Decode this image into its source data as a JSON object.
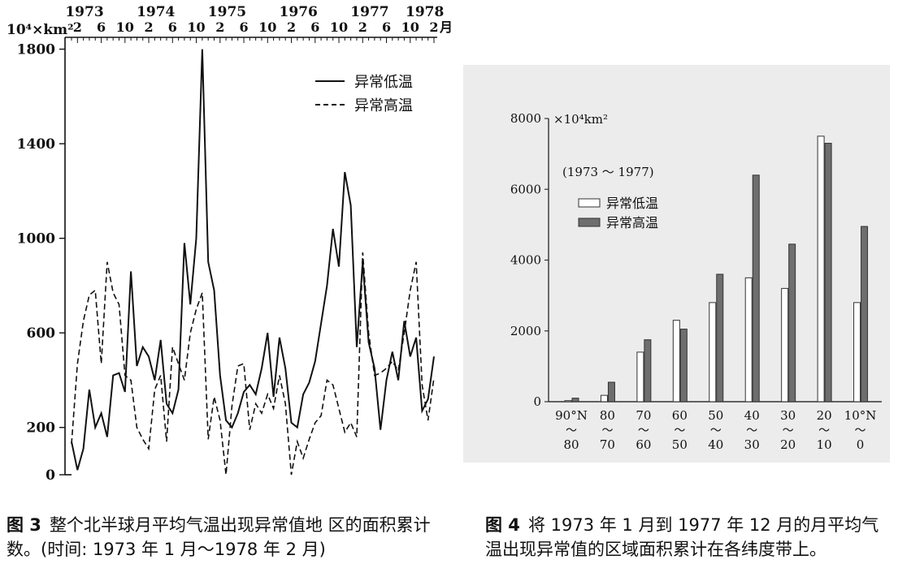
{
  "figure3": {
    "caption_number": "图 3",
    "caption_text": "整个北半球月平均气温出现异常值地 区的面积累计数。(时间: 1973 年 1 月～1978 年 2 月)",
    "chart_data": {
      "type": "line",
      "yunit_label": "10⁴×km²",
      "yticks": [
        "0",
        "200",
        "600",
        "1000",
        "1400",
        "1800"
      ],
      "ylim": [
        0,
        1850
      ],
      "year_labels": [
        "1973",
        "1974",
        "1975",
        "1976",
        "1977",
        "1978"
      ],
      "month_labels": [
        "2",
        "6",
        "10",
        "2",
        "6",
        "10",
        "2",
        "6",
        "10",
        "2",
        "6",
        "10",
        "2",
        "6",
        "10",
        "2"
      ],
      "month_unit": "月",
      "x_months": 62,
      "series": [
        {
          "name": "异常低温",
          "style": "solid",
          "values": [
            140,
            20,
            110,
            360,
            200,
            260,
            160,
            420,
            430,
            350,
            860,
            460,
            540,
            500,
            400,
            570,
            300,
            260,
            360,
            980,
            720,
            1000,
            1800,
            900,
            780,
            420,
            230,
            200,
            260,
            350,
            380,
            340,
            450,
            600,
            330,
            580,
            450,
            220,
            200,
            340,
            390,
            480,
            640,
            800,
            1040,
            880,
            1280,
            1140,
            540,
            900,
            560,
            450,
            190,
            400,
            520,
            400,
            650,
            500,
            580,
            270,
            320,
            500
          ]
        },
        {
          "name": "异常高温",
          "style": "dashed",
          "values": [
            130,
            470,
            650,
            760,
            780,
            470,
            900,
            770,
            720,
            420,
            400,
            200,
            150,
            110,
            360,
            420,
            140,
            540,
            470,
            400,
            600,
            700,
            770,
            150,
            330,
            230,
            0,
            290,
            460,
            470,
            190,
            300,
            260,
            340,
            280,
            420,
            300,
            0,
            140,
            70,
            150,
            220,
            250,
            400,
            380,
            280,
            180,
            220,
            160,
            940,
            600,
            420,
            430,
            450,
            480,
            440,
            600,
            780,
            900,
            380,
            230,
            410
          ]
        }
      ]
    }
  },
  "figure4": {
    "caption_number": "图 4",
    "caption_text": "将 1973 年 1 月到 1977 年 12 月的月平均气温出现异常值的区域面积累计在各纬度带上。",
    "chart_data": {
      "type": "bar",
      "yunit_label": "×10⁴km²",
      "subtitle": "(1973 ～ 1977)",
      "yticks": [
        "0",
        "2000",
        "4000",
        "6000",
        "8000"
      ],
      "ylim": [
        0,
        8000
      ],
      "categories": [
        {
          "top": "90",
          "bottom": "80",
          "suffix": "°N"
        },
        {
          "top": "80",
          "bottom": "70",
          "suffix": ""
        },
        {
          "top": "70",
          "bottom": "60",
          "suffix": ""
        },
        {
          "top": "60",
          "bottom": "50",
          "suffix": ""
        },
        {
          "top": "50",
          "bottom": "40",
          "suffix": ""
        },
        {
          "top": "40",
          "bottom": "30",
          "suffix": ""
        },
        {
          "top": "30",
          "bottom": "20",
          "suffix": ""
        },
        {
          "top": "20",
          "bottom": "10",
          "suffix": ""
        },
        {
          "top": "10",
          "bottom": "0",
          "suffix": "°N"
        }
      ],
      "tilde": "～",
      "series": [
        {
          "name": "异常低温",
          "fill": "#ffffff",
          "values": [
            30,
            180,
            1400,
            2300,
            2800,
            3500,
            3200,
            7500,
            2800
          ]
        },
        {
          "name": "异常高温",
          "fill": "#6e6e6e",
          "values": [
            100,
            550,
            1750,
            2050,
            3600,
            6400,
            4450,
            7300,
            4950
          ]
        }
      ]
    }
  }
}
